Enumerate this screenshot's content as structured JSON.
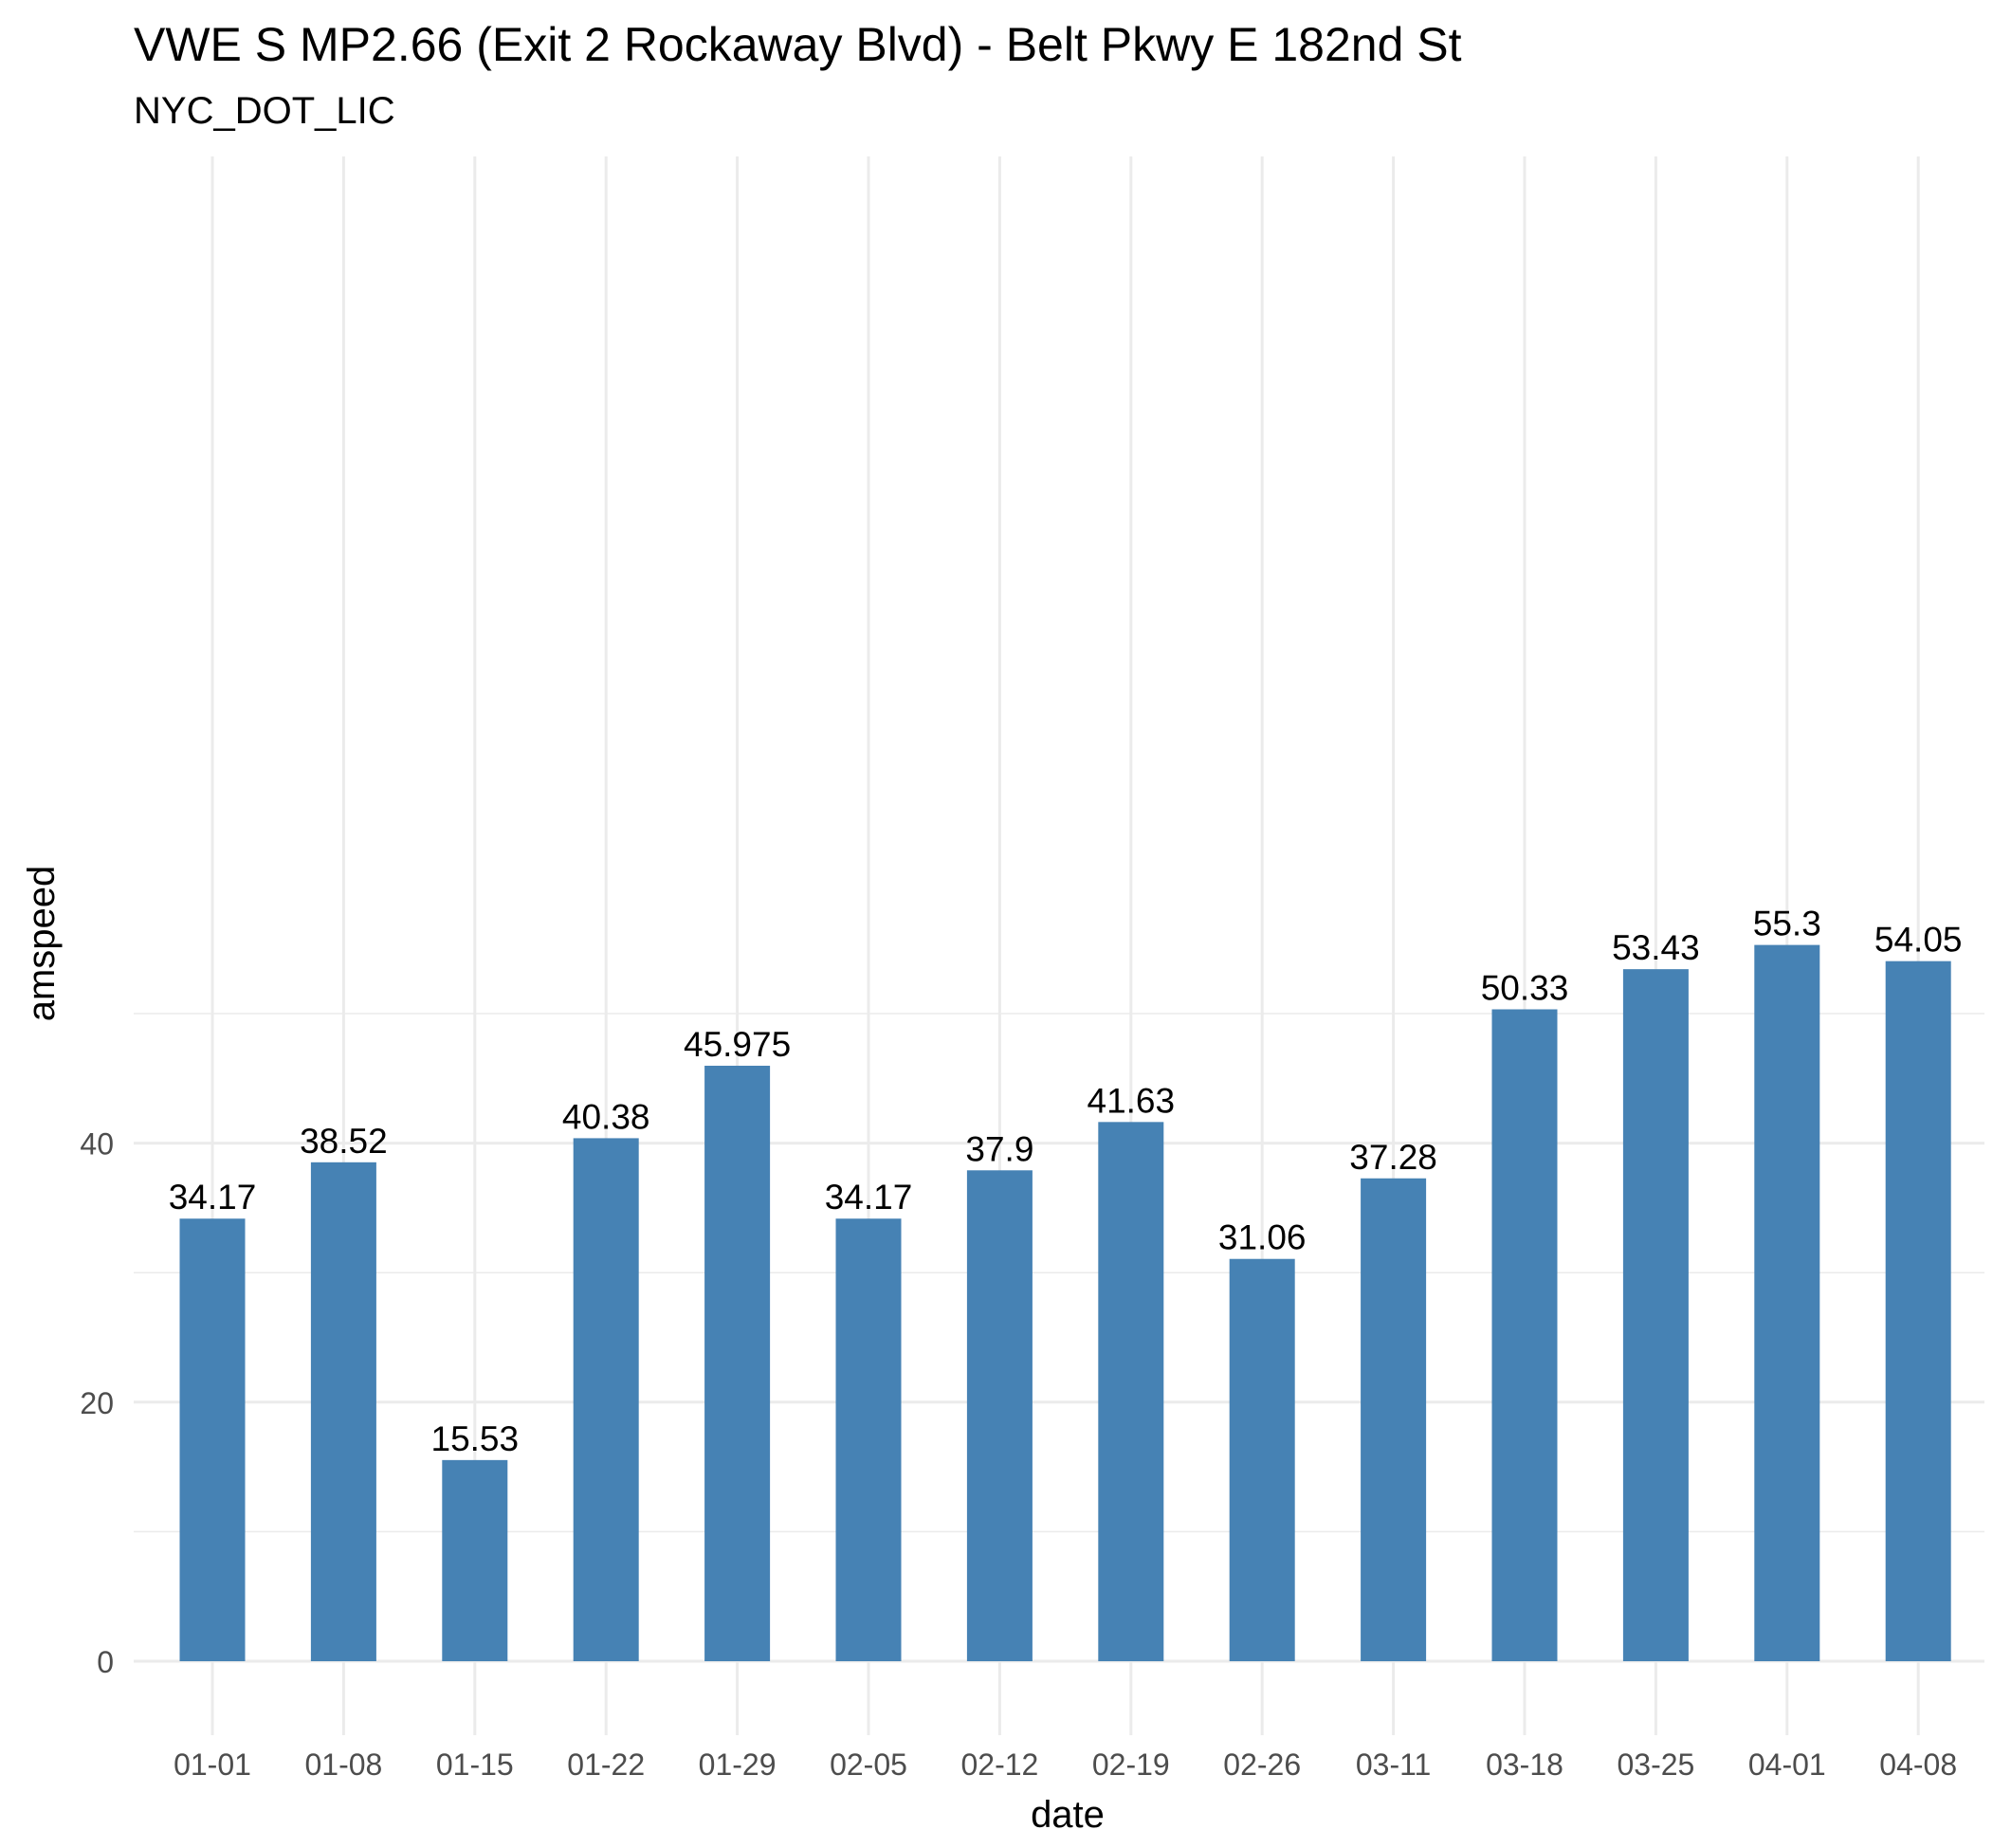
{
  "chart_data": {
    "type": "bar",
    "title": "VWE S MP2.66 (Exit 2 Rockaway Blvd) - Belt Pkwy E 182nd St",
    "subtitle": "NYC_DOT_LIC",
    "xlabel": "date",
    "ylabel": "amspeed",
    "categories": [
      "01-01",
      "01-08",
      "01-15",
      "01-22",
      "01-29",
      "02-05",
      "02-12",
      "02-19",
      "02-26",
      "03-11",
      "03-18",
      "03-25",
      "04-01",
      "04-08"
    ],
    "values": [
      34.17,
      38.52,
      15.53,
      40.38,
      45.975,
      34.17,
      37.9,
      41.63,
      31.06,
      37.28,
      50.33,
      53.43,
      55.3,
      54.05
    ],
    "value_labels": [
      "34.17",
      "38.52",
      "15.53",
      "40.38",
      "45.975",
      "34.17",
      "37.9",
      "41.63",
      "31.06",
      "37.28",
      "50.33",
      "53.43",
      "55.3",
      "54.05"
    ],
    "y_ticks": [
      "0",
      "20",
      "40"
    ],
    "ylim": [
      0,
      58
    ],
    "grid": true,
    "legend": "none",
    "bar_color": "#4682B4",
    "grid_color": "#EBEBEB",
    "tick_label_color": "#4D4D4D"
  }
}
